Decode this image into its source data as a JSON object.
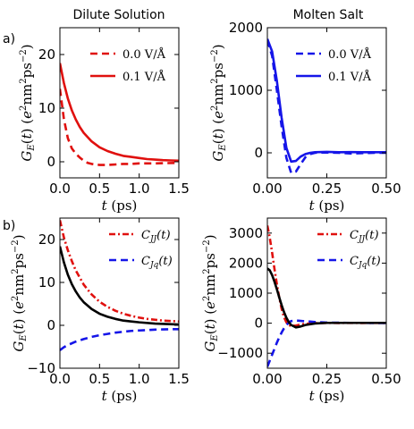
{
  "panel_labels": [
    "a)",
    "b)"
  ],
  "column_titles": [
    "Dilute Solution",
    "Molten Salt"
  ],
  "colors": {
    "red": "#e0100e",
    "blue": "#1515e8",
    "black": "#000000"
  },
  "chart_data": [
    {
      "type": "line",
      "title": "Dilute Solution",
      "xlabel": "t (ps)",
      "ylabel": "G_E(t) (e^2 nm^2 ps^-2)",
      "xlim": [
        0,
        1.5
      ],
      "ylim": [
        -3,
        25
      ],
      "xticks": [
        0.0,
        0.5,
        1.0,
        1.5
      ],
      "xtick_labels": [
        "0.0",
        "0.5",
        "1.0",
        "1.5"
      ],
      "yticks": [
        0,
        10,
        20
      ],
      "ytick_labels": [
        "0",
        "10",
        "20"
      ],
      "legend": "top-right",
      "series": [
        {
          "name": "0.0 V/Å",
          "color": "#e0100e",
          "style": "dashed",
          "x": [
            0,
            0.05,
            0.1,
            0.15,
            0.2,
            0.25,
            0.3,
            0.35,
            0.4,
            0.45,
            0.5,
            0.6,
            0.7,
            0.8,
            0.9,
            1.0,
            1.2,
            1.5
          ],
          "y": [
            13.6,
            8.0,
            4.4,
            2.5,
            1.5,
            0.8,
            0.2,
            -0.2,
            -0.4,
            -0.5,
            -0.6,
            -0.6,
            -0.5,
            -0.4,
            -0.4,
            -0.3,
            -0.3,
            -0.2
          ]
        },
        {
          "name": "0.1 V/Å",
          "color": "#e0100e",
          "style": "solid",
          "x": [
            0,
            0.05,
            0.1,
            0.15,
            0.2,
            0.25,
            0.3,
            0.4,
            0.5,
            0.6,
            0.7,
            0.8,
            0.9,
            1.0,
            1.1,
            1.2,
            1.3,
            1.4,
            1.5
          ],
          "y": [
            18.4,
            14.7,
            11.8,
            9.6,
            7.9,
            6.5,
            5.4,
            3.8,
            2.7,
            2.0,
            1.5,
            1.1,
            0.9,
            0.7,
            0.5,
            0.4,
            0.3,
            0.25,
            0.2
          ]
        }
      ]
    },
    {
      "type": "line",
      "title": "Molten Salt",
      "xlabel": "t (ps)",
      "ylabel": "G_E(t) (e^2 nm^2 ps^-2)",
      "xlim": [
        0,
        0.5
      ],
      "ylim": [
        -400,
        2000
      ],
      "xticks": [
        0.0,
        0.25,
        0.5
      ],
      "xtick_labels": [
        "0.00",
        "0.25",
        "0.50"
      ],
      "yticks": [
        0,
        1000,
        2000
      ],
      "ytick_labels": [
        "0",
        "1000",
        "2000"
      ],
      "legend": "top-right",
      "series": [
        {
          "name": "0.0 V/Å",
          "color": "#1515e8",
          "style": "dashed",
          "x": [
            0,
            0.02,
            0.04,
            0.06,
            0.08,
            0.1,
            0.12,
            0.14,
            0.16,
            0.18,
            0.2,
            0.22,
            0.25,
            0.3,
            0.35,
            0.4,
            0.45,
            0.5
          ],
          "y": [
            1800,
            1550,
            1000,
            420,
            -80,
            -320,
            -300,
            -180,
            -70,
            -20,
            0,
            5,
            5,
            0,
            -10,
            -5,
            0,
            0
          ]
        },
        {
          "name": "0.1 V/Å",
          "color": "#1515e8",
          "style": "solid",
          "x": [
            0,
            0.02,
            0.04,
            0.06,
            0.08,
            0.1,
            0.12,
            0.14,
            0.16,
            0.18,
            0.2,
            0.25,
            0.3,
            0.35,
            0.4,
            0.45,
            0.5
          ],
          "y": [
            1820,
            1620,
            1150,
            560,
            80,
            -140,
            -130,
            -60,
            -20,
            0,
            10,
            15,
            10,
            12,
            10,
            10,
            10
          ]
        }
      ]
    },
    {
      "type": "line",
      "title": "",
      "xlabel": "t (ps)",
      "ylabel": "G_E(t) (e^2 nm^2 ps^-2)",
      "xlim": [
        0,
        1.5
      ],
      "ylim": [
        -10,
        25
      ],
      "xticks": [
        0.0,
        0.5,
        1.0,
        1.5
      ],
      "xtick_labels": [
        "0.0",
        "0.5",
        "1.0",
        "1.5"
      ],
      "yticks": [
        -10,
        0,
        10,
        20
      ],
      "ytick_labels": [
        "−10",
        "0",
        "10",
        "20"
      ],
      "legend": "top-right",
      "series": [
        {
          "name": "C_JJ(t)",
          "color": "#e0100e",
          "style": "dashdot",
          "x": [
            0,
            0.05,
            0.1,
            0.15,
            0.2,
            0.3,
            0.4,
            0.5,
            0.6,
            0.7,
            0.8,
            0.9,
            1.0,
            1.1,
            1.2,
            1.3,
            1.4,
            1.5
          ],
          "y": [
            24.5,
            20.5,
            17.5,
            15.0,
            12.8,
            9.5,
            7.2,
            5.5,
            4.3,
            3.4,
            2.7,
            2.2,
            1.8,
            1.5,
            1.3,
            1.1,
            1.0,
            0.9
          ]
        },
        {
          "name": "C_Jq(t)",
          "color": "#1515e8",
          "style": "dashed",
          "x": [
            0,
            0.05,
            0.1,
            0.2,
            0.3,
            0.4,
            0.5,
            0.6,
            0.7,
            0.8,
            0.9,
            1.0,
            1.1,
            1.2,
            1.3,
            1.4,
            1.5
          ],
          "y": [
            -5.8,
            -5.1,
            -4.6,
            -3.8,
            -3.2,
            -2.7,
            -2.3,
            -2.0,
            -1.7,
            -1.5,
            -1.3,
            -1.2,
            -1.1,
            -1.0,
            -0.95,
            -0.9,
            -0.9
          ]
        },
        {
          "name": "",
          "color": "#000000",
          "style": "solid",
          "x": [
            0,
            0.05,
            0.1,
            0.15,
            0.2,
            0.25,
            0.3,
            0.4,
            0.5,
            0.6,
            0.7,
            0.8,
            0.9,
            1.0,
            1.2,
            1.5
          ],
          "y": [
            18.4,
            14.7,
            11.8,
            9.6,
            7.9,
            6.5,
            5.4,
            3.8,
            2.7,
            2.0,
            1.5,
            1.1,
            0.9,
            0.7,
            0.4,
            0.2
          ]
        }
      ]
    },
    {
      "type": "line",
      "title": "",
      "xlabel": "t (ps)",
      "ylabel": "G_E(t) (e^2 nm^2 ps^-2)",
      "xlim": [
        0,
        0.5
      ],
      "ylim": [
        -1500,
        3500
      ],
      "xticks": [
        0.0,
        0.25,
        0.5
      ],
      "xtick_labels": [
        "0.00",
        "0.25",
        "0.50"
      ],
      "yticks": [
        -1000,
        0,
        1000,
        2000,
        3000
      ],
      "ytick_labels": [
        "−1000",
        "0",
        "1000",
        "2000",
        "3000"
      ],
      "legend": "top-right",
      "series": [
        {
          "name": "C_JJ(t)",
          "color": "#e0100e",
          "style": "dashdot",
          "x": [
            0,
            0.01,
            0.02,
            0.03,
            0.04,
            0.05,
            0.06,
            0.07,
            0.08,
            0.09,
            0.1,
            0.12,
            0.15,
            0.2,
            0.25,
            0.3,
            0.35,
            0.4,
            0.45,
            0.5
          ],
          "y": [
            3250,
            2850,
            2350,
            1800,
            1300,
            850,
            480,
            200,
            30,
            -60,
            -90,
            -80,
            -30,
            0,
            10,
            5,
            10,
            5,
            10,
            5
          ]
        },
        {
          "name": "C_Jq(t)",
          "color": "#1515e8",
          "style": "dashed",
          "x": [
            0,
            0.01,
            0.02,
            0.03,
            0.04,
            0.05,
            0.06,
            0.07,
            0.08,
            0.09,
            0.1,
            0.12,
            0.15,
            0.2,
            0.25,
            0.3,
            0.35,
            0.4,
            0.45,
            0.5
          ],
          "y": [
            -1450,
            -1250,
            -1050,
            -850,
            -650,
            -470,
            -310,
            -170,
            -60,
            20,
            70,
            90,
            70,
            40,
            20,
            15,
            10,
            10,
            5,
            5
          ]
        },
        {
          "name": "",
          "color": "#000000",
          "style": "solid",
          "x": [
            0,
            0.01,
            0.02,
            0.03,
            0.04,
            0.05,
            0.06,
            0.07,
            0.08,
            0.09,
            0.1,
            0.12,
            0.14,
            0.16,
            0.2,
            0.25,
            0.3,
            0.4,
            0.5
          ],
          "y": [
            1820,
            1760,
            1600,
            1380,
            1130,
            860,
            600,
            370,
            180,
            40,
            -60,
            -140,
            -110,
            -60,
            -10,
            10,
            10,
            10,
            10
          ]
        }
      ]
    }
  ]
}
